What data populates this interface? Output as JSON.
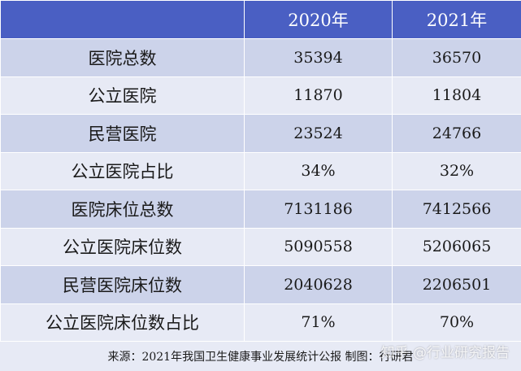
{
  "table": {
    "headers": [
      "",
      "2020年",
      "2021年"
    ],
    "rows": [
      {
        "label": "医院总数",
        "v2020": "35394",
        "v2021": "36570"
      },
      {
        "label": "公立医院",
        "v2020": "11870",
        "v2021": "11804"
      },
      {
        "label": "民营医院",
        "v2020": "23524",
        "v2021": "24766"
      },
      {
        "label": "公立医院占比",
        "v2020": "34%",
        "v2021": "32%"
      },
      {
        "label": "医院床位总数",
        "v2020": "7131186",
        "v2021": "7412566"
      },
      {
        "label": "公立医院床位数",
        "v2020": "5090558",
        "v2021": "5206065"
      },
      {
        "label": "民营医院床位数",
        "v2020": "2040628",
        "v2021": "2206501"
      },
      {
        "label": "公立医院床位数占比",
        "v2020": "71%",
        "v2021": "70%"
      }
    ]
  },
  "footer": {
    "source": "来源：2021年我国卫生健康事业发展统计公报 制图：行研君"
  },
  "watermark": {
    "text": "知乎 @行业研究报告"
  },
  "colors": {
    "header_bg": "#4a5fc3",
    "row_dark": "#ccd3ea",
    "row_light": "#e7eaf5"
  }
}
